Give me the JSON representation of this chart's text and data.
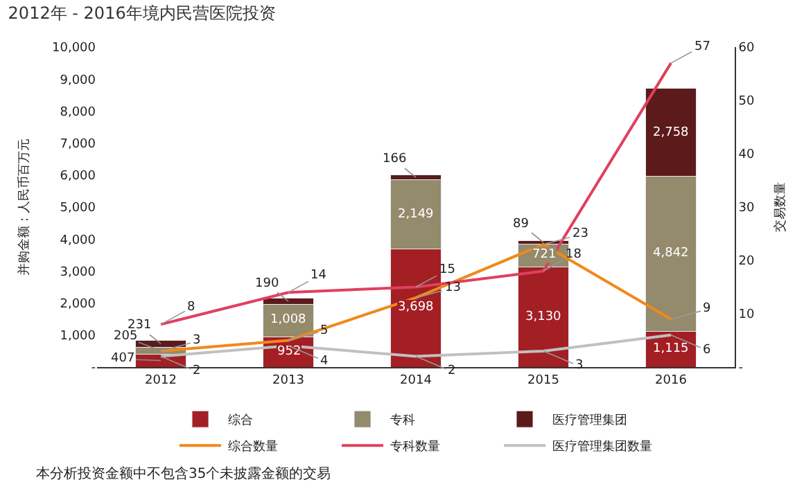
{
  "chart_data": {
    "type": "bar",
    "title": "2012年 - 2016年境内民营医院投资",
    "ylabel": "并购金额：人民币百万元",
    "y2label": "交易数量",
    "categories": [
      "2012",
      "2013",
      "2014",
      "2015",
      "2016"
    ],
    "stacked": true,
    "legend": "bottom",
    "ylim": [
      0,
      10000
    ],
    "yticks": [
      {
        "value": 0,
        "label": "-"
      },
      {
        "value": 1000,
        "label": "1,000"
      },
      {
        "value": 2000,
        "label": "2,000"
      },
      {
        "value": 3000,
        "label": "3,000"
      },
      {
        "value": 4000,
        "label": "4,000"
      },
      {
        "value": 5000,
        "label": "5,000"
      },
      {
        "value": 6000,
        "label": "6,000"
      },
      {
        "value": 7000,
        "label": "7,000"
      },
      {
        "value": 8000,
        "label": "8,000"
      },
      {
        "value": 9000,
        "label": "9,000"
      },
      {
        "value": 10000,
        "label": "10,000"
      }
    ],
    "y2lim": [
      0,
      60
    ],
    "y2ticks": [
      {
        "value": 0,
        "label": "-"
      },
      10,
      20,
      30,
      40,
      50,
      60
    ],
    "series": [
      {
        "name": "综合",
        "color": "#a31f24",
        "values": [
          407,
          952,
          3698,
          3130,
          1115
        ],
        "value_labels": [
          "407",
          "952",
          "3,698",
          "3,130",
          "1,115"
        ]
      },
      {
        "name": "专科",
        "color": "#948a6c",
        "values": [
          205,
          1008,
          2149,
          721,
          4842
        ],
        "value_labels": [
          "205",
          "1,008",
          "2,149",
          "721",
          "4,842"
        ]
      },
      {
        "name": "医疗管理集团",
        "color": "#5c1a1a",
        "values": [
          231,
          190,
          166,
          89,
          2758
        ],
        "value_labels": [
          "231",
          "190",
          "166",
          "89",
          "2,758"
        ]
      },
      {
        "name": "综合数量",
        "type": "line",
        "axis": "y2",
        "color": "#f0891a",
        "values": [
          3,
          5,
          13,
          23,
          9
        ],
        "value_labels": [
          "3",
          "5",
          "13",
          "23",
          "9"
        ]
      },
      {
        "name": "专科数量",
        "type": "line",
        "axis": "y2",
        "color": "#e0405f",
        "values": [
          8,
          14,
          15,
          18,
          57
        ],
        "value_labels": [
          "8",
          "14",
          "15",
          "18",
          "57"
        ]
      },
      {
        "name": "医疗管理集团数量",
        "type": "line",
        "axis": "y2",
        "color": "#c0c0c0",
        "values": [
          2,
          4,
          2,
          3,
          6
        ],
        "value_labels": [
          "2",
          "4",
          "2",
          "3",
          "6"
        ]
      }
    ],
    "annotations": [
      "本分析投资金额中不包含35个未披露金额的交易"
    ]
  }
}
